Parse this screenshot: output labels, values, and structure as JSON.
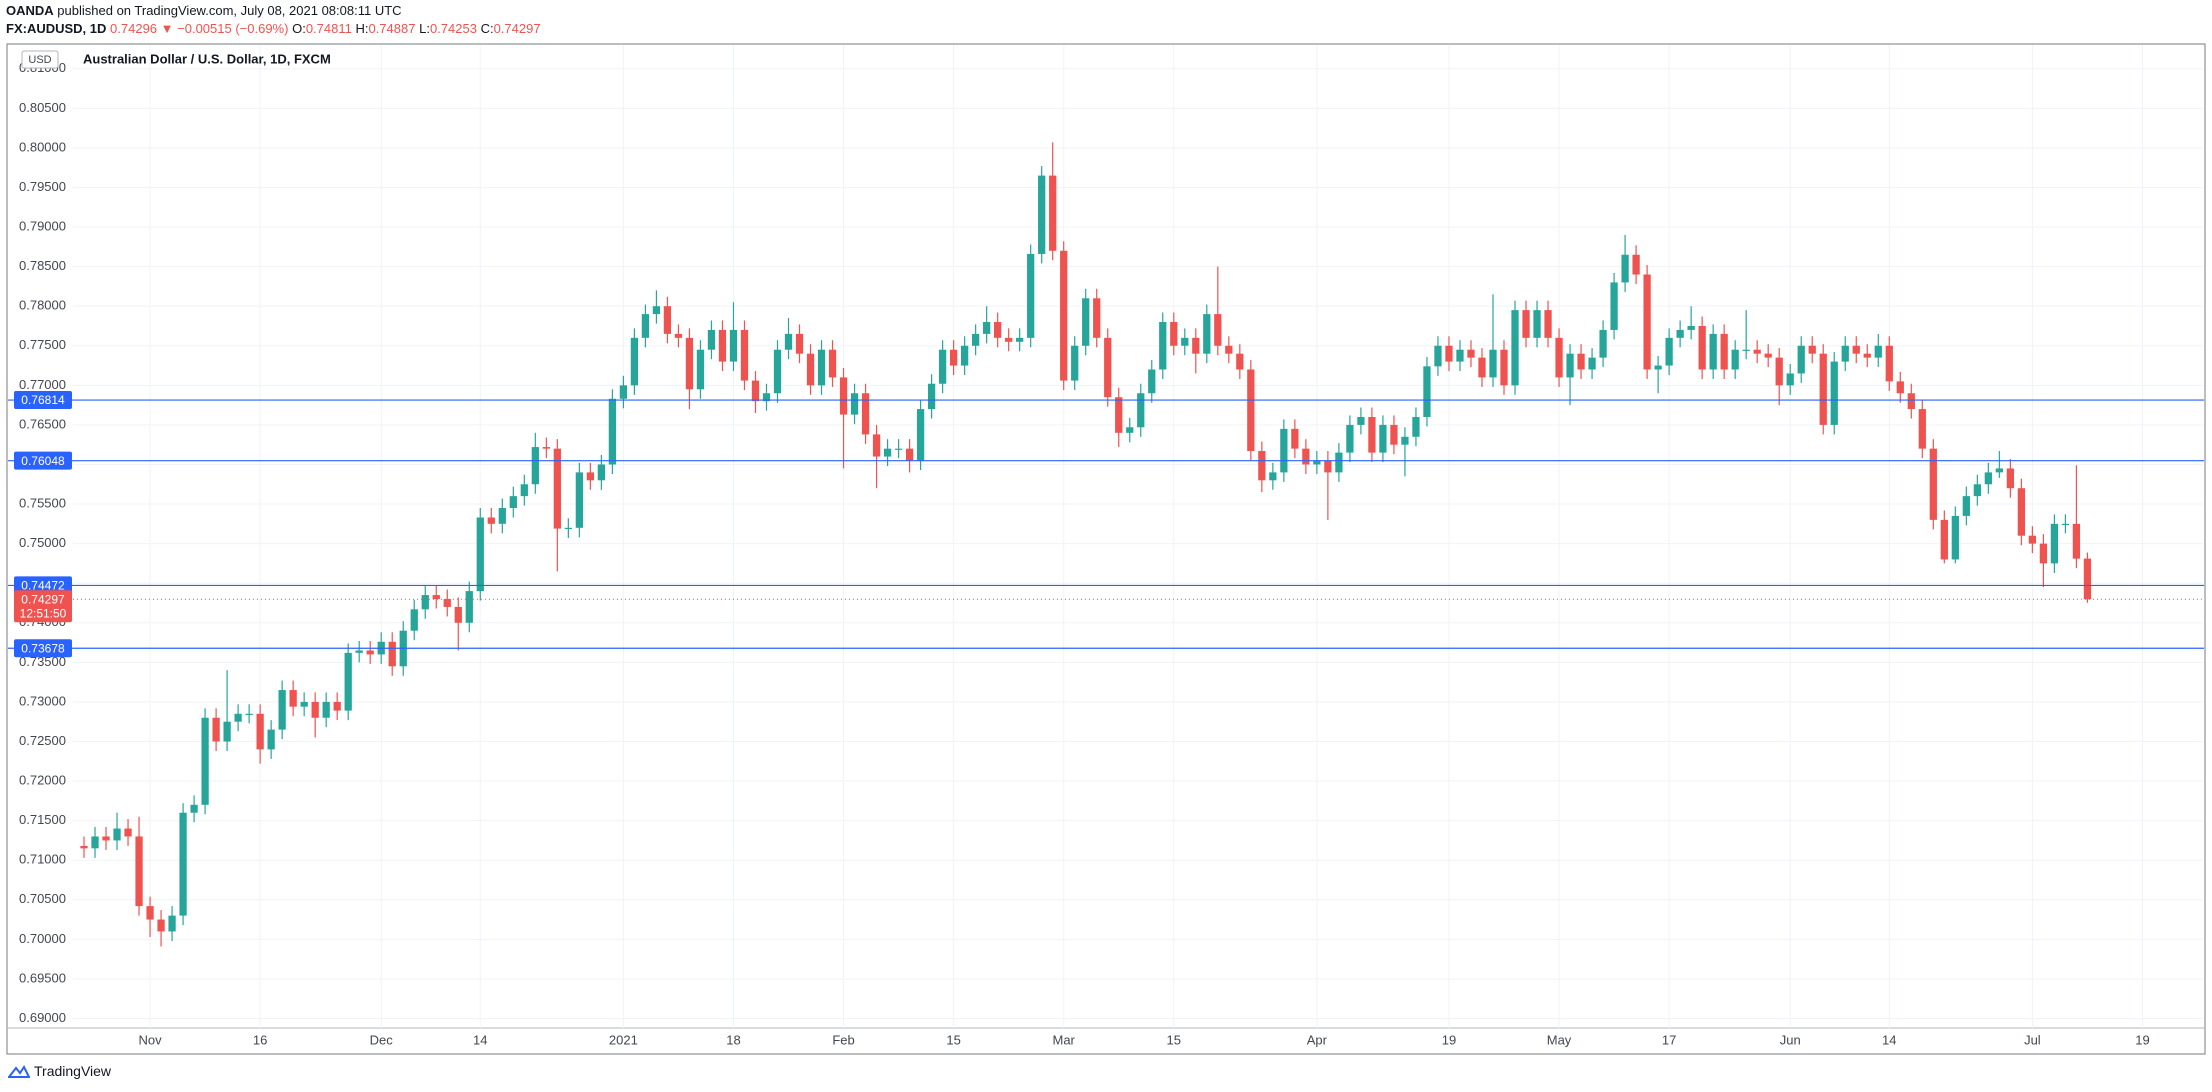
{
  "header": {
    "publisher": "OANDA",
    "published": "published on TradingView.com, July 08, 2021 08:08:11 UTC",
    "symbol": "FX:AUDUSD, 1D",
    "last": "0.74296",
    "change": "▼ −0.00515 (−0.69%)",
    "ohlc": [
      {
        "key": "O:",
        "value": "0.74811"
      },
      {
        "key": "H:",
        "value": "0.74887"
      },
      {
        "key": "L:",
        "value": "0.74253"
      },
      {
        "key": "C:",
        "value": "0.74297"
      }
    ]
  },
  "footer": "TradingView",
  "chart_data": {
    "type": "candlestick",
    "title": "Australian Dollar / U.S. Dollar, 1D, FXCM",
    "currency": "USD",
    "up_color": "#26a69a",
    "down_color": "#ef5350",
    "grid": true,
    "xlim": [
      -1,
      192.5
    ],
    "ylim": [
      0.6888,
      0.813
    ],
    "xticks": [
      {
        "value": 6,
        "label": "Nov"
      },
      {
        "value": 16,
        "label": "16"
      },
      {
        "value": 27,
        "label": "Dec"
      },
      {
        "value": 36,
        "label": "14"
      },
      {
        "value": 49,
        "label": "2021"
      },
      {
        "value": 59,
        "label": "18"
      },
      {
        "value": 69,
        "label": "Feb"
      },
      {
        "value": 79,
        "label": "15"
      },
      {
        "value": 89,
        "label": "Mar"
      },
      {
        "value": 99,
        "label": "15"
      },
      {
        "value": 112,
        "label": "Apr"
      },
      {
        "value": 124,
        "label": "19"
      },
      {
        "value": 134,
        "label": "May"
      },
      {
        "value": 144,
        "label": "17"
      },
      {
        "value": 155,
        "label": "Jun"
      },
      {
        "value": 164,
        "label": "14"
      },
      {
        "value": 177,
        "label": "Jul"
      },
      {
        "value": 187,
        "label": "19"
      }
    ],
    "yticks": [
      {
        "value": 0.69,
        "label": "0.69000"
      },
      {
        "value": 0.695,
        "label": "0.69500"
      },
      {
        "value": 0.7,
        "label": "0.70000"
      },
      {
        "value": 0.705,
        "label": "0.70500"
      },
      {
        "value": 0.71,
        "label": "0.71000"
      },
      {
        "value": 0.715,
        "label": "0.71500"
      },
      {
        "value": 0.72,
        "label": "0.72000"
      },
      {
        "value": 0.725,
        "label": "0.72500"
      },
      {
        "value": 0.73,
        "label": "0.73000"
      },
      {
        "value": 0.735,
        "label": "0.73500"
      },
      {
        "value": 0.74,
        "label": "0.74000"
      },
      {
        "value": 0.745,
        "label": "0.74500"
      },
      {
        "value": 0.75,
        "label": "0.75000"
      },
      {
        "value": 0.755,
        "label": "0.75500"
      },
      {
        "value": 0.76,
        "label": "0.76000"
      },
      {
        "value": 0.765,
        "label": "0.76500"
      },
      {
        "value": 0.77,
        "label": "0.77000"
      },
      {
        "value": 0.775,
        "label": "0.77500"
      },
      {
        "value": 0.78,
        "label": "0.78000"
      },
      {
        "value": 0.785,
        "label": "0.78500"
      },
      {
        "value": 0.79,
        "label": "0.79000"
      },
      {
        "value": 0.795,
        "label": "0.79500"
      },
      {
        "value": 0.8,
        "label": "0.80000"
      },
      {
        "value": 0.805,
        "label": "0.80500"
      },
      {
        "value": 0.81,
        "label": "0.81000"
      }
    ],
    "price_lines": [
      {
        "value": 0.76814,
        "label": "0.76814"
      },
      {
        "value": 0.76048,
        "label": "0.76048"
      },
      {
        "value": 0.74472,
        "label": "0.74472"
      },
      {
        "value": 0.73678,
        "label": "0.73678"
      }
    ],
    "price_line_color": "#2962ff",
    "last_price": {
      "value": 0.74297,
      "label": "0.74297",
      "countdown": "12:51:50"
    },
    "open": [
      0.7118,
      0.7115,
      0.713,
      0.7125,
      0.714,
      0.713,
      0.7042,
      0.7025,
      0.701,
      0.703,
      0.716,
      0.717,
      0.728,
      0.725,
      0.7275,
      0.7285,
      0.7285,
      0.724,
      0.7265,
      0.7315,
      0.7294,
      0.73,
      0.728,
      0.73,
      0.7289,
      0.7362,
      0.7365,
      0.736,
      0.7376,
      0.7345,
      0.739,
      0.7417,
      0.7435,
      0.743,
      0.742,
      0.74,
      0.744,
      0.7533,
      0.7525,
      0.7545,
      0.756,
      0.7575,
      0.7622,
      0.762,
      0.7519,
      0.752,
      0.759,
      0.758,
      0.76,
      0.7683,
      0.77,
      0.776,
      0.779,
      0.78,
      0.7765,
      0.776,
      0.7695,
      0.7745,
      0.777,
      0.773,
      0.777,
      0.7706,
      0.768,
      0.769,
      0.7745,
      0.7765,
      0.774,
      0.77,
      0.7745,
      0.771,
      0.7663,
      0.769,
      0.7638,
      0.761,
      0.762,
      0.762,
      0.7605,
      0.767,
      0.7702,
      0.7745,
      0.7725,
      0.775,
      0.7765,
      0.778,
      0.776,
      0.7755,
      0.776,
      0.7866,
      0.7965,
      0.787,
      0.7706,
      0.775,
      0.781,
      0.776,
      0.7685,
      0.764,
      0.7647,
      0.769,
      0.772,
      0.778,
      0.775,
      0.776,
      0.774,
      0.779,
      0.775,
      0.774,
      0.772,
      0.7617,
      0.758,
      0.759,
      0.7645,
      0.762,
      0.76,
      0.7605,
      0.759,
      0.7615,
      0.765,
      0.766,
      0.7615,
      0.765,
      0.7625,
      0.7635,
      0.766,
      0.7724,
      0.775,
      0.773,
      0.7745,
      0.7735,
      0.771,
      0.7745,
      0.77,
      0.7795,
      0.776,
      0.7795,
      0.776,
      0.771,
      0.774,
      0.772,
      0.7735,
      0.777,
      0.783,
      0.7865,
      0.784,
      0.772,
      0.7725,
      0.776,
      0.777,
      0.7775,
      0.772,
      0.7765,
      0.772,
      0.7745,
      0.7745,
      0.774,
      0.7735,
      0.77,
      0.7715,
      0.775,
      0.774,
      0.765,
      0.773,
      0.775,
      0.774,
      0.7735,
      0.775,
      0.7705,
      0.769,
      0.767,
      0.762,
      0.753,
      0.748,
      0.7535,
      0.756,
      0.7575,
      0.759,
      0.7595,
      0.757,
      0.751,
      0.75,
      0.7475,
      0.7525,
      0.7525,
      0.74811
    ],
    "high": [
      0.713,
      0.7142,
      0.7142,
      0.716,
      0.7152,
      0.7155,
      0.7054,
      0.7037,
      0.7042,
      0.7172,
      0.7182,
      0.7292,
      0.7292,
      0.734,
      0.7297,
      0.7297,
      0.7297,
      0.7277,
      0.7327,
      0.7327,
      0.7312,
      0.7312,
      0.7312,
      0.7312,
      0.7374,
      0.7377,
      0.7377,
      0.7388,
      0.7388,
      0.7402,
      0.7429,
      0.7447,
      0.7447,
      0.7442,
      0.7432,
      0.7452,
      0.7545,
      0.7545,
      0.7557,
      0.7572,
      0.7587,
      0.764,
      0.7634,
      0.7632,
      0.7532,
      0.7602,
      0.7602,
      0.7612,
      0.7695,
      0.7712,
      0.7772,
      0.7802,
      0.782,
      0.7812,
      0.7777,
      0.7772,
      0.7757,
      0.7782,
      0.7782,
      0.7805,
      0.7782,
      0.7718,
      0.7702,
      0.7757,
      0.7785,
      0.7777,
      0.7752,
      0.7757,
      0.7757,
      0.7722,
      0.7702,
      0.7702,
      0.765,
      0.7632,
      0.7632,
      0.7632,
      0.7682,
      0.7714,
      0.7757,
      0.7757,
      0.7762,
      0.7777,
      0.78,
      0.7792,
      0.7772,
      0.7772,
      0.7878,
      0.7977,
      0.8007,
      0.7882,
      0.7762,
      0.7822,
      0.7822,
      0.7772,
      0.7697,
      0.7659,
      0.7702,
      0.7732,
      0.7792,
      0.7792,
      0.7772,
      0.7772,
      0.7802,
      0.785,
      0.7762,
      0.7752,
      0.7732,
      0.7629,
      0.7602,
      0.7657,
      0.7657,
      0.7632,
      0.7617,
      0.7617,
      0.7627,
      0.7662,
      0.7672,
      0.7672,
      0.7662,
      0.7662,
      0.7647,
      0.7672,
      0.7736,
      0.7762,
      0.7762,
      0.7757,
      0.7757,
      0.7747,
      0.7815,
      0.7757,
      0.7807,
      0.7807,
      0.7807,
      0.7807,
      0.7772,
      0.7752,
      0.7752,
      0.7747,
      0.7782,
      0.7842,
      0.789,
      0.7877,
      0.7852,
      0.7737,
      0.7772,
      0.7782,
      0.78,
      0.7787,
      0.7777,
      0.7777,
      0.7757,
      0.7795,
      0.7757,
      0.7752,
      0.7747,
      0.7727,
      0.7762,
      0.7762,
      0.7752,
      0.7742,
      0.7762,
      0.7762,
      0.7752,
      0.7765,
      0.7762,
      0.7717,
      0.7702,
      0.7682,
      0.7632,
      0.7542,
      0.7547,
      0.7572,
      0.7587,
      0.7602,
      0.7617,
      0.7607,
      0.7582,
      0.7522,
      0.7512,
      0.7537,
      0.7537,
      0.7599,
      0.74887
    ],
    "low": [
      0.7103,
      0.7103,
      0.7113,
      0.7113,
      0.7118,
      0.703,
      0.7003,
      0.6991,
      0.6998,
      0.7018,
      0.7148,
      0.7158,
      0.7238,
      0.7238,
      0.7263,
      0.7273,
      0.7222,
      0.7228,
      0.7253,
      0.7282,
      0.7282,
      0.7255,
      0.7268,
      0.7277,
      0.7277,
      0.735,
      0.7348,
      0.7348,
      0.7333,
      0.7333,
      0.7378,
      0.7405,
      0.7418,
      0.7408,
      0.7365,
      0.7388,
      0.7428,
      0.7513,
      0.7513,
      0.7533,
      0.7548,
      0.7563,
      0.7608,
      0.7465,
      0.7507,
      0.7508,
      0.7568,
      0.7568,
      0.7588,
      0.7671,
      0.7688,
      0.7748,
      0.7778,
      0.7753,
      0.7748,
      0.767,
      0.7683,
      0.7733,
      0.7718,
      0.7718,
      0.7694,
      0.7665,
      0.7668,
      0.7678,
      0.7733,
      0.7728,
      0.7688,
      0.7688,
      0.7698,
      0.7595,
      0.7651,
      0.7626,
      0.757,
      0.7598,
      0.7608,
      0.759,
      0.7593,
      0.7658,
      0.769,
      0.7713,
      0.7713,
      0.7738,
      0.7753,
      0.7748,
      0.7743,
      0.7743,
      0.7748,
      0.7854,
      0.7858,
      0.7694,
      0.7694,
      0.7738,
      0.7748,
      0.7673,
      0.7622,
      0.7628,
      0.7635,
      0.7678,
      0.7708,
      0.7738,
      0.7738,
      0.7715,
      0.7728,
      0.7738,
      0.7728,
      0.7708,
      0.7605,
      0.7565,
      0.7568,
      0.7578,
      0.7608,
      0.7588,
      0.7588,
      0.753,
      0.7578,
      0.7603,
      0.7638,
      0.7603,
      0.7603,
      0.7613,
      0.7585,
      0.7623,
      0.7648,
      0.7712,
      0.7718,
      0.7718,
      0.7723,
      0.7698,
      0.7698,
      0.7688,
      0.7688,
      0.7748,
      0.7748,
      0.7748,
      0.7698,
      0.7675,
      0.7708,
      0.7708,
      0.7723,
      0.7758,
      0.7818,
      0.7828,
      0.7708,
      0.769,
      0.7713,
      0.7748,
      0.7758,
      0.7708,
      0.7708,
      0.7708,
      0.7708,
      0.7733,
      0.7728,
      0.7723,
      0.7675,
      0.7688,
      0.7703,
      0.7728,
      0.7638,
      0.7638,
      0.7718,
      0.7728,
      0.7723,
      0.7723,
      0.7693,
      0.7678,
      0.7658,
      0.7608,
      0.7518,
      0.7475,
      0.7475,
      0.7523,
      0.7548,
      0.7563,
      0.7583,
      0.7558,
      0.7498,
      0.7488,
      0.7445,
      0.7463,
      0.7513,
      0.7469,
      0.74253
    ],
    "close": [
      0.7115,
      0.713,
      0.7125,
      0.714,
      0.713,
      0.7042,
      0.7025,
      0.701,
      0.703,
      0.716,
      0.717,
      0.728,
      0.725,
      0.7275,
      0.7285,
      0.7285,
      0.724,
      0.7265,
      0.7315,
      0.7294,
      0.73,
      0.728,
      0.73,
      0.7289,
      0.7362,
      0.7365,
      0.736,
      0.7376,
      0.7345,
      0.739,
      0.7417,
      0.7435,
      0.743,
      0.742,
      0.74,
      0.744,
      0.7533,
      0.7525,
      0.7545,
      0.756,
      0.7575,
      0.7622,
      0.762,
      0.7519,
      0.752,
      0.759,
      0.758,
      0.76,
      0.7683,
      0.77,
      0.776,
      0.779,
      0.78,
      0.7765,
      0.776,
      0.7695,
      0.7745,
      0.777,
      0.773,
      0.777,
      0.7706,
      0.768,
      0.769,
      0.7745,
      0.7765,
      0.774,
      0.77,
      0.7745,
      0.771,
      0.7663,
      0.769,
      0.7638,
      0.761,
      0.762,
      0.762,
      0.7605,
      0.767,
      0.7702,
      0.7745,
      0.7725,
      0.775,
      0.7765,
      0.778,
      0.776,
      0.7755,
      0.776,
      0.7866,
      0.7965,
      0.787,
      0.7706,
      0.775,
      0.781,
      0.776,
      0.7685,
      0.764,
      0.7647,
      0.769,
      0.772,
      0.778,
      0.775,
      0.776,
      0.774,
      0.779,
      0.775,
      0.774,
      0.772,
      0.7617,
      0.758,
      0.759,
      0.7645,
      0.762,
      0.76,
      0.7605,
      0.759,
      0.7615,
      0.765,
      0.766,
      0.7615,
      0.765,
      0.7625,
      0.7635,
      0.766,
      0.7724,
      0.775,
      0.773,
      0.7745,
      0.7735,
      0.771,
      0.7745,
      0.77,
      0.7795,
      0.776,
      0.7795,
      0.776,
      0.771,
      0.774,
      0.772,
      0.7735,
      0.777,
      0.783,
      0.7865,
      0.784,
      0.772,
      0.7725,
      0.776,
      0.777,
      0.7775,
      0.772,
      0.7765,
      0.772,
      0.7745,
      0.7745,
      0.774,
      0.7735,
      0.77,
      0.7715,
      0.775,
      0.774,
      0.765,
      0.773,
      0.775,
      0.774,
      0.7735,
      0.775,
      0.7705,
      0.769,
      0.767,
      0.762,
      0.753,
      0.748,
      0.7535,
      0.756,
      0.7575,
      0.759,
      0.7595,
      0.757,
      0.751,
      0.75,
      0.7475,
      0.7525,
      0.7525,
      0.7481,
      0.74297
    ]
  }
}
